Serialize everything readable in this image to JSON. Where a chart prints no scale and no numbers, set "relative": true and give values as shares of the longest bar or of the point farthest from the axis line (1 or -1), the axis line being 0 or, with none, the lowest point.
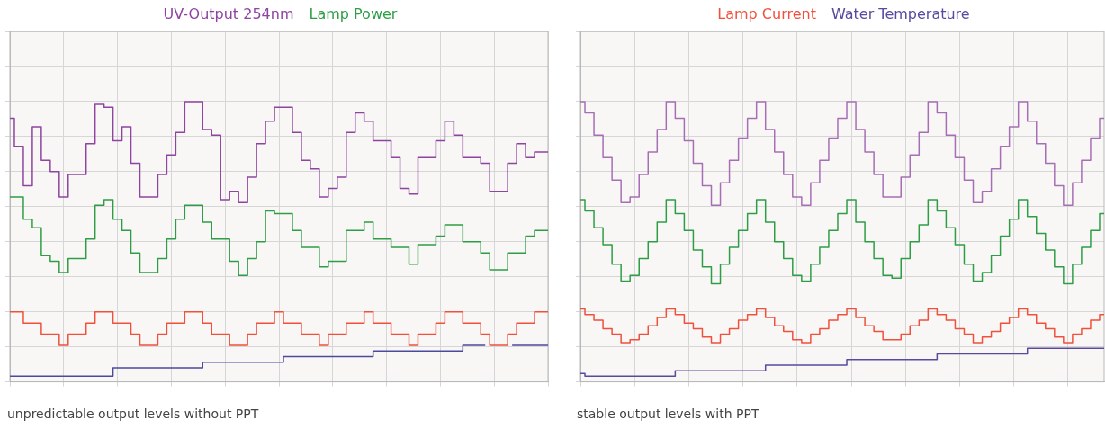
{
  "chart_data": [
    {
      "type": "step",
      "relative": true,
      "grid": true,
      "legend": "top",
      "categories": [
        null,
        null,
        null,
        null,
        null,
        null,
        null,
        null,
        null,
        null,
        null,
        null,
        null,
        null,
        null,
        null,
        null,
        null,
        null,
        null,
        null,
        null,
        null,
        null,
        null,
        null,
        null,
        null,
        null,
        null,
        null,
        null,
        null,
        null,
        null,
        null,
        null,
        null,
        null,
        null,
        null,
        null,
        null,
        null,
        null,
        null,
        null,
        null,
        null,
        null,
        null,
        null,
        null,
        null,
        null,
        null,
        null,
        null,
        null,
        null,
        null
      ],
      "series": [
        {
          "name": "UV-Output 254nm",
          "color": "#8e44a0",
          "values": [
            0.94,
            0.84,
            0.7,
            0.91,
            0.79,
            0.75,
            0.66,
            0.74,
            0.74,
            0.85,
            0.99,
            0.98,
            0.86,
            0.91,
            0.78,
            0.66,
            0.66,
            0.74,
            0.81,
            0.89,
            1.0,
            1.0,
            0.9,
            0.88,
            0.65,
            0.68,
            0.64,
            0.73,
            0.85,
            0.93,
            0.98,
            0.98,
            0.89,
            0.79,
            0.76,
            0.66,
            0.69,
            0.73,
            0.89,
            0.96,
            0.93,
            0.86,
            0.86,
            0.8,
            0.69,
            0.67,
            0.8,
            0.8,
            0.86,
            0.93,
            0.88,
            0.8,
            0.8,
            0.78,
            0.68,
            0.68,
            0.78,
            0.85,
            0.8,
            0.82,
            0.82
          ]
        },
        {
          "name": "Lamp Power",
          "color": "#2e9e46",
          "values": [
            0.66,
            0.66,
            0.58,
            0.55,
            0.45,
            0.43,
            0.39,
            0.44,
            0.44,
            0.51,
            0.63,
            0.65,
            0.58,
            0.54,
            0.46,
            0.39,
            0.39,
            0.44,
            0.51,
            0.58,
            0.63,
            0.63,
            0.57,
            0.51,
            0.51,
            0.43,
            0.38,
            0.44,
            0.5,
            0.61,
            0.6,
            0.6,
            0.54,
            0.48,
            0.48,
            0.41,
            0.43,
            0.43,
            0.54,
            0.54,
            0.57,
            0.51,
            0.51,
            0.48,
            0.48,
            0.42,
            0.49,
            0.49,
            0.52,
            0.56,
            0.56,
            0.5,
            0.5,
            0.46,
            0.4,
            0.4,
            0.46,
            0.46,
            0.52,
            0.54,
            0.54
          ]
        },
        {
          "color": "#f0503c",
          "values": [
            0.25,
            0.25,
            0.21,
            0.21,
            0.17,
            0.17,
            0.13,
            0.17,
            0.17,
            0.21,
            0.25,
            0.25,
            0.21,
            0.21,
            0.17,
            0.13,
            0.13,
            0.17,
            0.21,
            0.21,
            0.25,
            0.25,
            0.21,
            0.17,
            0.17,
            0.13,
            0.13,
            0.17,
            0.21,
            0.21,
            0.25,
            0.21,
            0.21,
            0.17,
            0.17,
            0.13,
            0.17,
            0.17,
            0.21,
            0.21,
            0.25,
            0.21,
            0.21,
            0.17,
            0.17,
            0.13,
            0.17,
            0.17,
            0.21,
            0.25,
            0.25,
            0.21,
            0.21,
            0.17,
            0.13,
            0.13,
            0.17,
            0.21,
            0.21,
            0.25,
            0.25
          ]
        },
        {
          "color": "#4b4a9c",
          "values": [
            0.02,
            0.02,
            0.02,
            0.02,
            0.02,
            0.02,
            0.02,
            0.02,
            0.02,
            0.02,
            0.02,
            0.02,
            0.05,
            0.05,
            0.05,
            0.05,
            0.05,
            0.05,
            0.05,
            0.05,
            0.05,
            0.05,
            0.07,
            0.07,
            0.07,
            0.07,
            0.07,
            0.07,
            0.07,
            0.07,
            0.07,
            0.09,
            0.09,
            0.09,
            0.09,
            0.09,
            0.09,
            0.09,
            0.09,
            0.09,
            0.09,
            0.11,
            0.11,
            0.11,
            0.11,
            0.11,
            0.11,
            0.11,
            0.11,
            0.11,
            0.11,
            0.13,
            0.13,
            0.13,
            null,
            null,
            0.13,
            0.13,
            0.13,
            0.13,
            0.13
          ]
        }
      ],
      "annotations": [
        "unpredictable output levels without PPT"
      ]
    },
    {
      "type": "step",
      "relative": true,
      "grid": true,
      "legend": "top",
      "categories": [
        null,
        null,
        null,
        null,
        null,
        null,
        null,
        null,
        null,
        null,
        null,
        null,
        null,
        null,
        null,
        null,
        null,
        null,
        null,
        null,
        null,
        null,
        null,
        null,
        null,
        null,
        null,
        null,
        null,
        null,
        null,
        null,
        null,
        null,
        null,
        null,
        null,
        null,
        null,
        null,
        null,
        null,
        null,
        null,
        null,
        null,
        null,
        null,
        null,
        null,
        null,
        null,
        null,
        null,
        null,
        null,
        null,
        null,
        null
      ],
      "series": [
        {
          "color": "#a66fb5",
          "values": [
            1.0,
            0.96,
            0.88,
            0.8,
            0.72,
            0.64,
            0.66,
            0.74,
            0.82,
            0.9,
            1.0,
            0.94,
            0.86,
            0.78,
            0.7,
            0.63,
            0.71,
            0.79,
            0.87,
            0.94,
            1.0,
            0.9,
            0.82,
            0.74,
            0.66,
            0.63,
            0.71,
            0.79,
            0.87,
            0.94,
            1.0,
            0.9,
            0.82,
            0.74,
            0.66,
            0.66,
            0.73,
            0.81,
            0.89,
            1.0,
            0.96,
            0.88,
            0.8,
            0.72,
            0.64,
            0.68,
            0.76,
            0.84,
            0.91,
            1.0,
            0.93,
            0.85,
            0.78,
            0.7,
            0.63,
            0.71,
            0.79,
            0.87,
            0.94
          ]
        },
        {
          "color": "#2e9e46",
          "values": [
            0.65,
            0.61,
            0.55,
            0.49,
            0.42,
            0.36,
            0.38,
            0.44,
            0.5,
            0.57,
            0.65,
            0.6,
            0.54,
            0.47,
            0.41,
            0.35,
            0.42,
            0.48,
            0.54,
            0.6,
            0.65,
            0.57,
            0.5,
            0.44,
            0.38,
            0.36,
            0.42,
            0.48,
            0.54,
            0.6,
            0.65,
            0.57,
            0.5,
            0.44,
            0.38,
            0.37,
            0.44,
            0.5,
            0.56,
            0.65,
            0.61,
            0.55,
            0.49,
            0.42,
            0.36,
            0.39,
            0.45,
            0.52,
            0.58,
            0.65,
            0.59,
            0.53,
            0.47,
            0.41,
            0.35,
            0.42,
            0.48,
            0.54,
            0.6
          ]
        },
        {
          "name": "Lamp Current",
          "color": "#f0503c",
          "values": [
            0.26,
            0.24,
            0.22,
            0.19,
            0.17,
            0.14,
            0.15,
            0.17,
            0.2,
            0.23,
            0.26,
            0.24,
            0.21,
            0.19,
            0.16,
            0.14,
            0.17,
            0.19,
            0.22,
            0.24,
            0.26,
            0.23,
            0.2,
            0.18,
            0.15,
            0.14,
            0.17,
            0.19,
            0.22,
            0.24,
            0.26,
            0.23,
            0.2,
            0.18,
            0.15,
            0.15,
            0.17,
            0.2,
            0.22,
            0.26,
            0.24,
            0.22,
            0.19,
            0.17,
            0.14,
            0.16,
            0.18,
            0.21,
            0.23,
            0.26,
            0.24,
            0.21,
            0.19,
            0.16,
            0.14,
            0.17,
            0.19,
            0.22,
            0.24
          ]
        },
        {
          "name": "Water Temperature",
          "color": "#5a4a9e",
          "values": [
            0.03,
            0.02,
            0.02,
            0.02,
            0.02,
            0.02,
            0.02,
            0.02,
            0.02,
            0.02,
            0.02,
            0.04,
            0.04,
            0.04,
            0.04,
            0.04,
            0.04,
            0.04,
            0.04,
            0.04,
            0.04,
            0.06,
            0.06,
            0.06,
            0.06,
            0.06,
            0.06,
            0.06,
            0.06,
            0.06,
            0.08,
            0.08,
            0.08,
            0.08,
            0.08,
            0.08,
            0.08,
            0.08,
            0.08,
            0.08,
            0.1,
            0.1,
            0.1,
            0.1,
            0.1,
            0.1,
            0.1,
            0.1,
            0.1,
            0.1,
            0.12,
            0.12,
            0.12,
            0.12,
            0.12,
            0.12,
            0.12,
            0.12,
            0.12
          ]
        }
      ],
      "annotations": [
        "stable output levels with PPT"
      ]
    }
  ]
}
